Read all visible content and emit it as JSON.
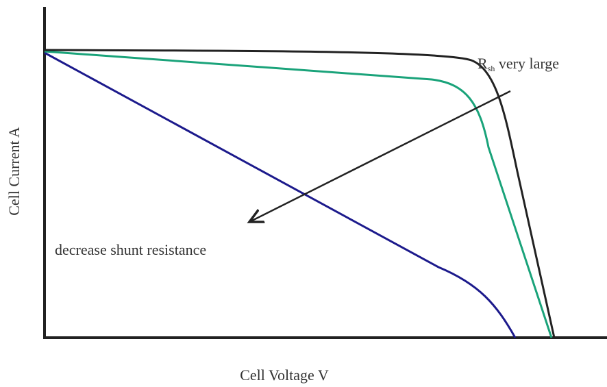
{
  "x_axis_label": "Cell Voltage V",
  "y_axis_label": "Cell Current A",
  "annotations": {
    "rsh_symbol": "R",
    "rsh_subscript": "sh",
    "rsh_text": " very large",
    "arrow_text": "decrease shunt resistance"
  }
}
